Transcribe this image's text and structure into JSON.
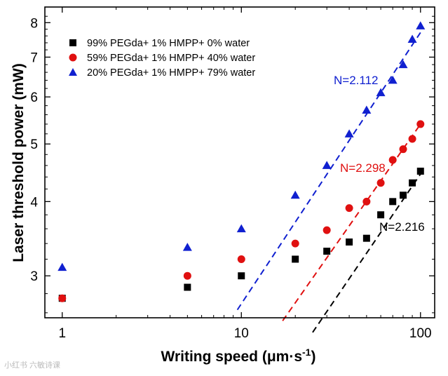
{
  "chart_data": {
    "type": "scatter",
    "xscale": "log",
    "yscale": "log",
    "xlabel_main": "Writing speed (μm·s",
    "xlabel_sup": "-1",
    "xlabel_close": ")",
    "ylabel": "Laser threshold power (mW)",
    "xlim": [
      0.8,
      120
    ],
    "ylim": [
      2.55,
      8.5
    ],
    "xticks": [
      1,
      10,
      100
    ],
    "xtick_labels": [
      "1",
      "10",
      "100"
    ],
    "yticks": [
      3,
      4,
      5,
      6,
      7,
      8
    ],
    "ytick_labels": [
      "3",
      "4",
      "5",
      "6",
      "7",
      "8"
    ],
    "legend_position": "top-left",
    "series": [
      {
        "name": "99% PEGda+ 1% HMPP+ 0% water",
        "marker": "square",
        "color": "#000000",
        "x": [
          1,
          5,
          10,
          20,
          30,
          40,
          50,
          60,
          70,
          80,
          90,
          100
        ],
        "y": [
          2.75,
          2.87,
          3.0,
          3.2,
          3.3,
          3.42,
          3.47,
          3.8,
          4.0,
          4.1,
          4.3,
          4.5
        ],
        "fit": {
          "label": "N=2.216",
          "x": [
            25,
            100
          ],
          "y": [
            2.41,
            4.45
          ]
        }
      },
      {
        "name": "59% PEGda+ 1% HMPP+ 40% water",
        "marker": "circle",
        "color": "#e01010",
        "x": [
          1,
          5,
          10,
          20,
          30,
          40,
          50,
          60,
          70,
          80,
          90,
          100
        ],
        "y": [
          2.75,
          3.0,
          3.2,
          3.4,
          3.58,
          3.9,
          4.0,
          4.3,
          4.7,
          4.9,
          5.1,
          5.4
        ],
        "fit": {
          "label": "N=2.298",
          "x": [
            17,
            100
          ],
          "y": [
            2.52,
            5.4
          ]
        }
      },
      {
        "name": "20% PEGda+ 1% HMPP+ 79% water",
        "marker": "triangle",
        "color": "#1020d0",
        "x": [
          1,
          5,
          10,
          20,
          30,
          40,
          50,
          60,
          70,
          80,
          90,
          100
        ],
        "y": [
          3.1,
          3.35,
          3.6,
          4.1,
          4.6,
          5.2,
          5.7,
          6.1,
          6.4,
          6.8,
          7.5,
          7.9
        ],
        "fit": {
          "label": "N=2.112",
          "x": [
            9.5,
            100
          ],
          "y": [
            2.63,
            7.7
          ]
        }
      }
    ]
  },
  "watermark": "小红书 六敏诗课"
}
